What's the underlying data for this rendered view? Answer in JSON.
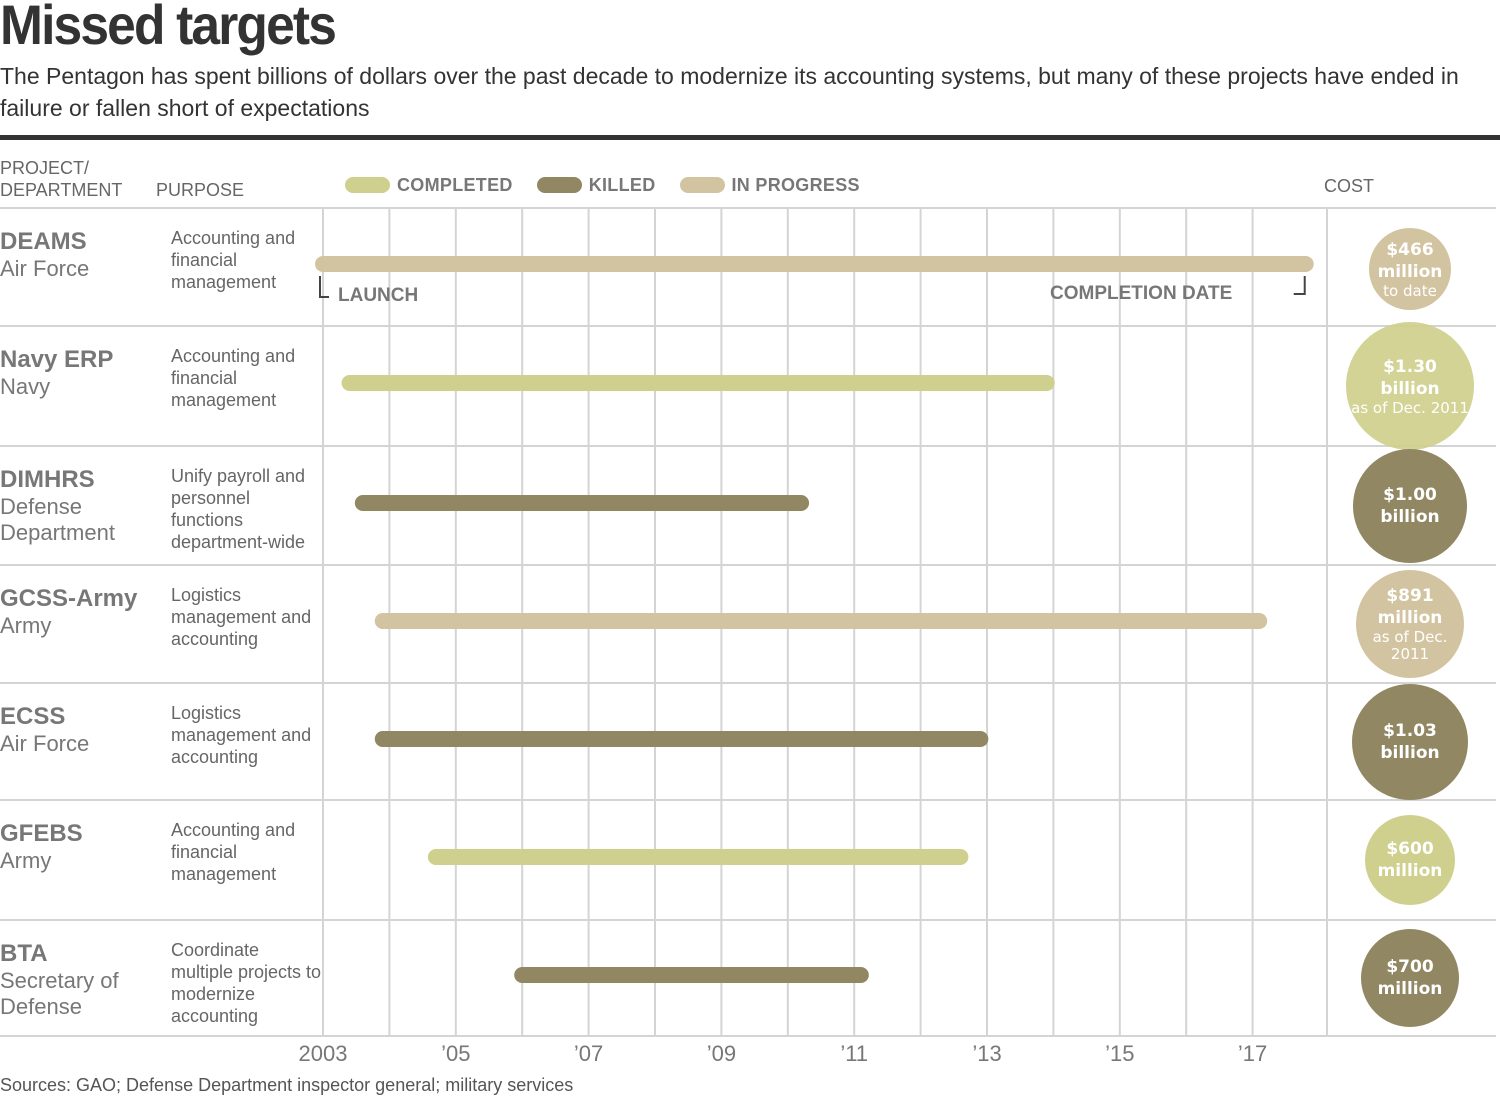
{
  "title": "Missed targets",
  "subtitle": "The Pentagon has spent billions of dollars over the past decade to modernize its accounting systems, but many of these projects have ended in failure or fallen short of expectations",
  "headers": {
    "project_line1": "PROJECT/",
    "project_line2": "DEPARTMENT",
    "purpose": "PURPOSE",
    "cost": "COST"
  },
  "colors": {
    "completed": "#cfd08d",
    "killed": "#918762",
    "in_progress": "#d3c4a1",
    "grid": "#d4d4d4"
  },
  "annotations": {
    "launch": "LAUNCH",
    "completion": "COMPLETION DATE"
  },
  "source": "Sources: GAO; Defense Department inspector general; military services",
  "chart_data": {
    "type": "timeline",
    "xlim": [
      2003,
      2018
    ],
    "x_ticks": [
      {
        "value": 2003,
        "label": "2003"
      },
      {
        "value": 2005,
        "label": "’05"
      },
      {
        "value": 2007,
        "label": "’07"
      },
      {
        "value": 2009,
        "label": "’09"
      },
      {
        "value": 2011,
        "label": "’11"
      },
      {
        "value": 2013,
        "label": "’13"
      },
      {
        "value": 2015,
        "label": "’15"
      },
      {
        "value": 2017,
        "label": "’17"
      }
    ],
    "legend": [
      {
        "key": "completed",
        "label": "COMPLETED"
      },
      {
        "key": "killed",
        "label": "KILLED"
      },
      {
        "key": "in_progress",
        "label": "IN PROGRESS"
      }
    ],
    "projects": [
      {
        "name": "DEAMS",
        "department": "Air Force",
        "purpose": "Accounting and financial management",
        "status": "in_progress",
        "start": 2003.0,
        "end": 2017.8,
        "cost_amount": "$466 million",
        "cost_note": "to date",
        "cost_millions": 466
      },
      {
        "name": "Navy ERP",
        "department": "Navy",
        "purpose": "Accounting and financial management",
        "status": "completed",
        "start": 2003.4,
        "end": 2013.9,
        "cost_amount": "$1.30 billion",
        "cost_note": "as of Dec. 2011",
        "cost_millions": 1300
      },
      {
        "name": "DIMHRS",
        "department": "Defense Department",
        "purpose": "Unify payroll and personnel functions department-wide",
        "status": "killed",
        "start": 2003.6,
        "end": 2010.2,
        "cost_amount": "$1.00 billion",
        "cost_note": "",
        "cost_millions": 1000
      },
      {
        "name": "GCSS-Army",
        "department": "Army",
        "purpose": "Logistics management and accounting",
        "status": "in_progress",
        "start": 2003.9,
        "end": 2017.1,
        "cost_amount": "$891 million",
        "cost_note": "as of Dec. 2011",
        "cost_millions": 891
      },
      {
        "name": "ECSS",
        "department": "Air Force",
        "purpose": "Logistics management and accounting",
        "status": "killed",
        "start": 2003.9,
        "end": 2012.9,
        "cost_amount": "$1.03 billion",
        "cost_note": "",
        "cost_millions": 1030
      },
      {
        "name": "GFEBS",
        "department": "Army",
        "purpose": "Accounting and financial management",
        "status": "completed",
        "start": 2004.7,
        "end": 2012.6,
        "cost_amount": "$600 million",
        "cost_note": "",
        "cost_millions": 600
      },
      {
        "name": "BTA",
        "department": "Secretary of Defense",
        "purpose": "Coordinate multiple projects to modernize accounting",
        "status": "killed",
        "start": 2006.0,
        "end": 2011.1,
        "cost_amount": "$700 million",
        "cost_note": "",
        "cost_millions": 700
      }
    ]
  }
}
